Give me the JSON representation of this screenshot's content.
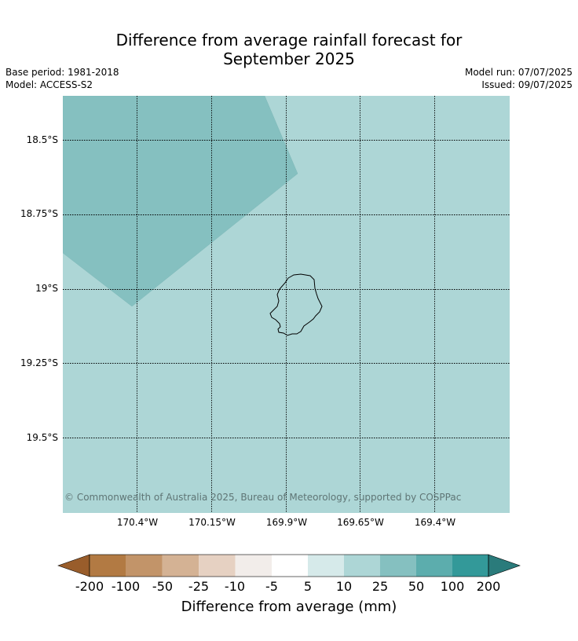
{
  "header": {
    "title_line1": "Difference from average rainfall forecast for",
    "title_line2": "September 2025",
    "base_period": "Base period: 1981-2018",
    "model": "Model: ACCESS-S2",
    "model_run": "Model run: 07/07/2025",
    "issued": "Issued: 09/07/2025"
  },
  "map": {
    "latitude_labels": [
      "18.5°S",
      "18.75°S",
      "19°S",
      "19.25°S",
      "19.5°S"
    ],
    "longitude_labels": [
      "170.4°W",
      "170.15°W",
      "169.9°W",
      "169.65°W",
      "169.4°W"
    ],
    "copyright": "© Commonwealth of Australia 2025, Bureau of Meteorology, supported by COSPPac",
    "background_category": "10 to 25",
    "region_category": "25 to 50",
    "colors": {
      "category_10_25": "#add6d6",
      "category_25_50": "#85c0c0",
      "coastline": "#000000"
    }
  },
  "colorbar": {
    "title": "Difference from average (mm)",
    "tick_labels": [
      "-200",
      "-100",
      "-50",
      "-25",
      "-10",
      "-5",
      "5",
      "10",
      "25",
      "50",
      "100",
      "200"
    ],
    "colors": [
      "#995d2b",
      "#b27a43",
      "#c29469",
      "#d4b294",
      "#e6d1c2",
      "#f2edea",
      "#ffffff",
      "#d6eaea",
      "#add6d6",
      "#85c0c0",
      "#5cadad",
      "#339999",
      "#2a7b7b"
    ]
  }
}
